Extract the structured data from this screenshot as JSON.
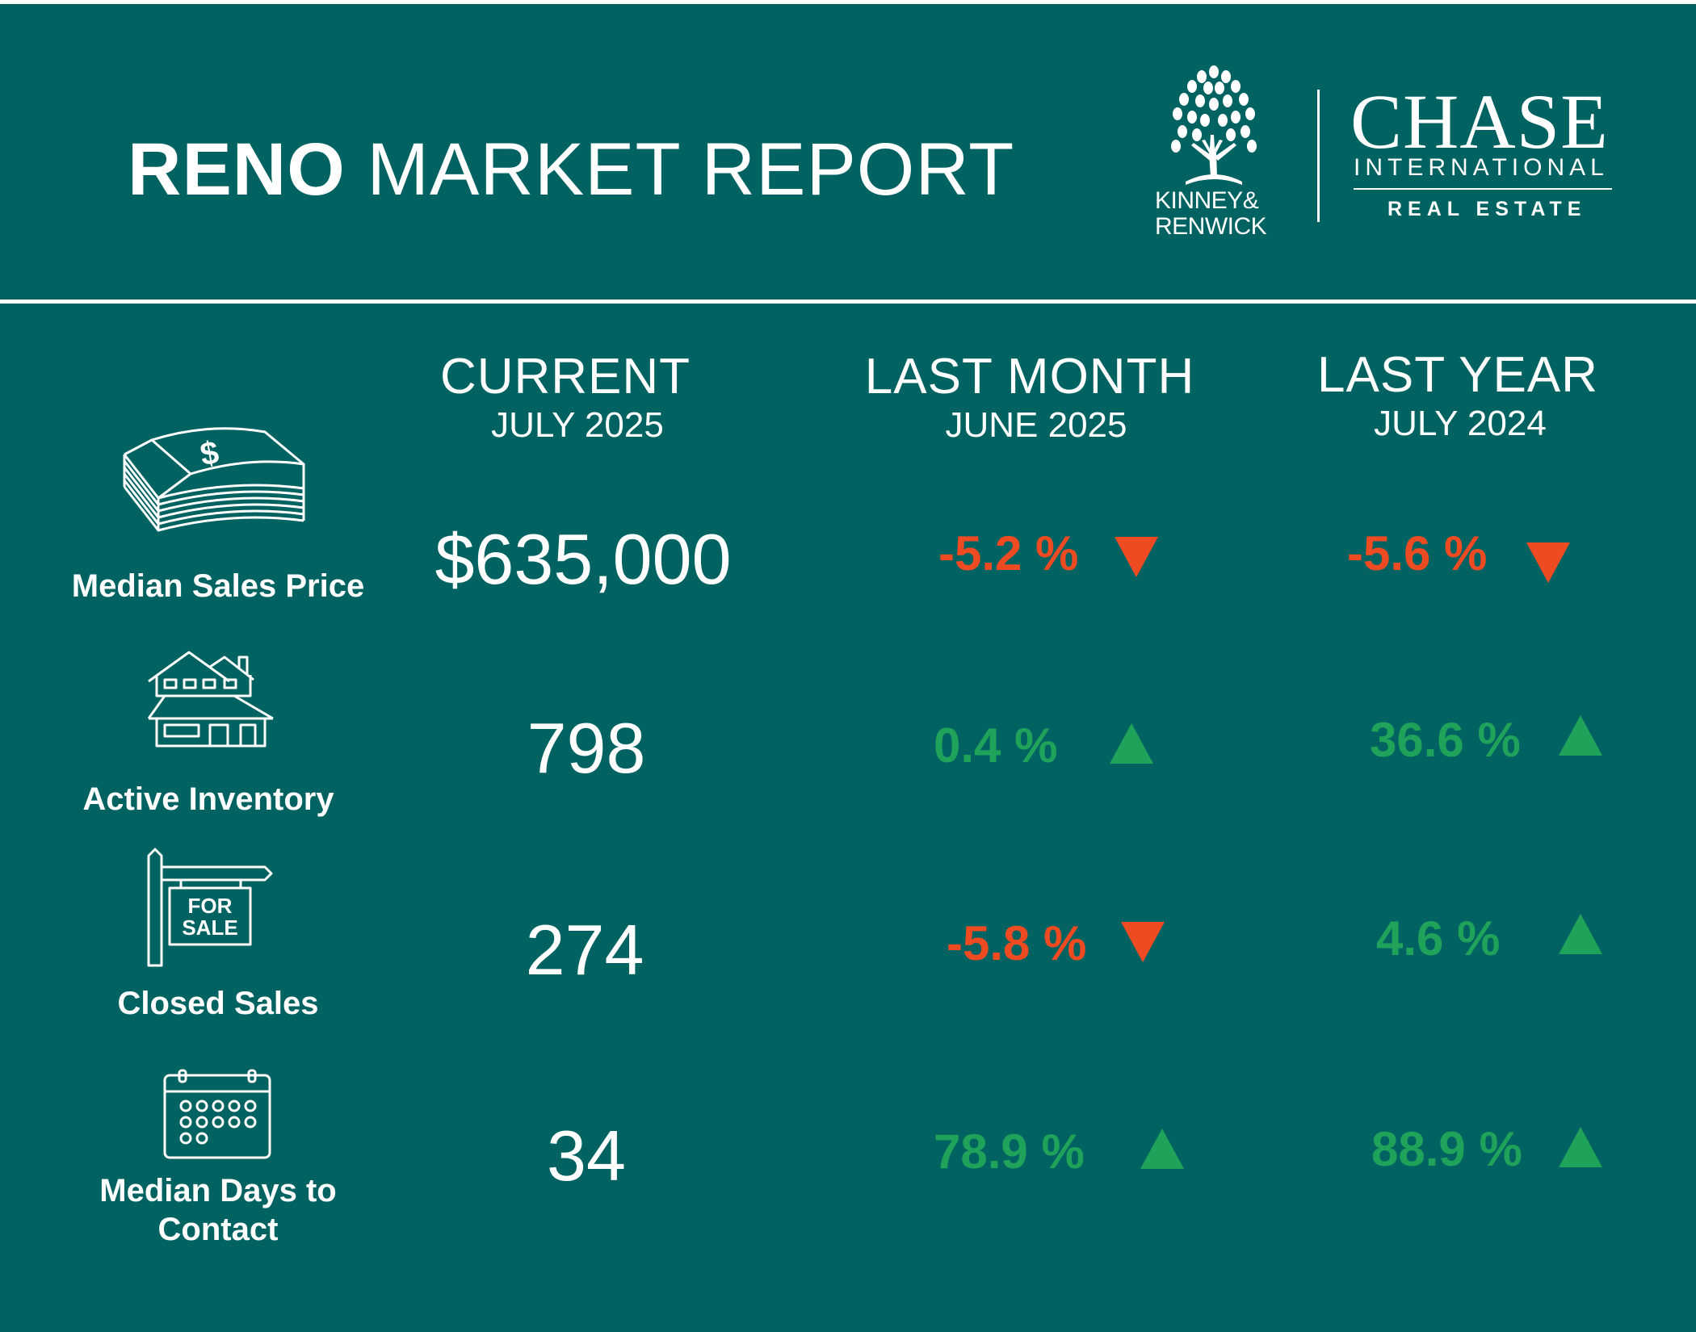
{
  "header": {
    "title_bold": "RENO",
    "title_rest": "MARKET REPORT"
  },
  "logos": {
    "kinney_line1": "KINNEY&",
    "kinney_line2": "RENWICK",
    "chase_name": "CHASE",
    "chase_intl": "INTERNATIONAL",
    "chase_re": "REAL ESTATE",
    "tree_icon": "tree-icon"
  },
  "columns": [
    {
      "label": "CURRENT",
      "period": "JULY 2025"
    },
    {
      "label": "LAST MONTH",
      "period": "JUNE 2025"
    },
    {
      "label": "LAST YEAR",
      "period": "JULY 2024"
    }
  ],
  "metrics": [
    {
      "label": "Median Sales Price",
      "icon": "money-stack-icon",
      "current": "$635,000",
      "last_month": {
        "text": "-5.2 %",
        "direction": "down"
      },
      "last_year": {
        "text": "-5.6 %",
        "direction": "down"
      }
    },
    {
      "label": "Active Inventory",
      "icon": "house-icon",
      "current": "798",
      "last_month": {
        "text": "0.4 %",
        "direction": "up"
      },
      "last_year": {
        "text": "36.6 %",
        "direction": "up"
      }
    },
    {
      "label": "Closed Sales",
      "icon": "for-sale-sign-icon",
      "current": "274",
      "last_month": {
        "text": "-5.8 %",
        "direction": "down"
      },
      "last_year": {
        "text": "4.6 %",
        "direction": "up"
      }
    },
    {
      "label_line1": "Median Days to",
      "label_line2": "Contact",
      "icon": "calendar-icon",
      "current": "34",
      "last_month": {
        "text": "78.9 %",
        "direction": "up"
      },
      "last_year": {
        "text": "88.9 %",
        "direction": "up"
      }
    }
  ],
  "colors": {
    "background": "#006261",
    "positive": "#1fa35a",
    "negative": "#ef4b22",
    "text": "#ffffff"
  }
}
